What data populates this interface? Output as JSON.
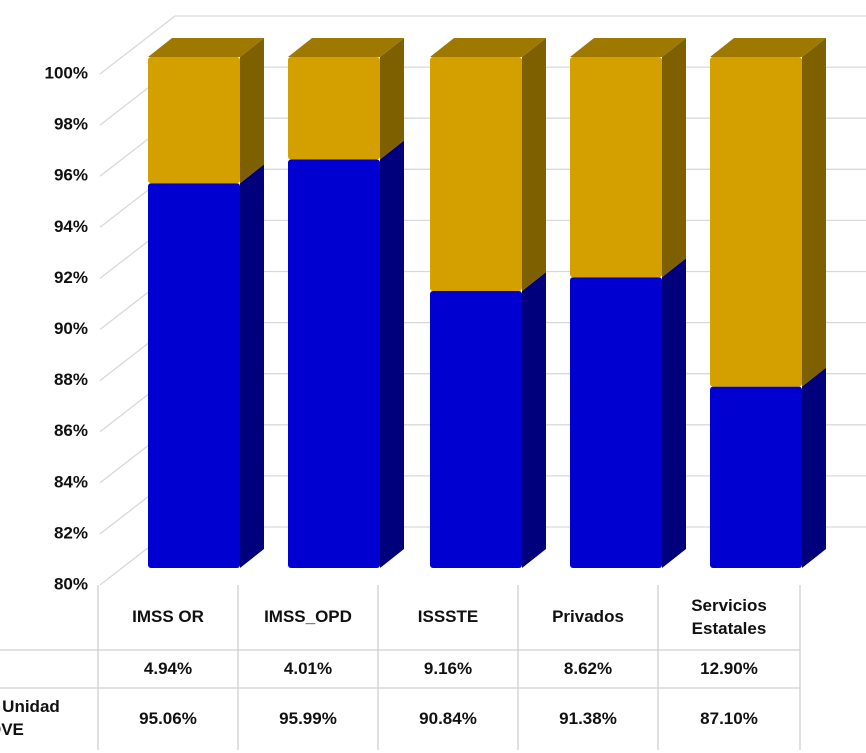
{
  "chart_data": {
    "type": "stacked-bar-3d",
    "categories": [
      "IMSS OR",
      "IMSS_OPD",
      "ISSSTE",
      "Privados",
      "Servicios Estatales"
    ],
    "series": [
      {
        "color": "#d4a000",
        "values": [
          4.94,
          4.01,
          9.16,
          8.62,
          12.9
        ],
        "value_labels": [
          "4.94%",
          "4.01%",
          "9.16%",
          "8.62%",
          "12.90%"
        ]
      },
      {
        "name": "a Unidad OVE",
        "color": "#0000d0",
        "values": [
          95.06,
          95.99,
          90.84,
          91.38,
          87.1
        ],
        "value_labels": [
          "95.06%",
          "95.99%",
          "90.84%",
          "91.38%",
          "87.10%"
        ]
      }
    ],
    "ylim": [
      80,
      100
    ],
    "yticks": [
      {
        "value": 80,
        "label": "80%"
      },
      {
        "value": 82,
        "label": "82%"
      },
      {
        "value": 84,
        "label": "84%"
      },
      {
        "value": 86,
        "label": "86%"
      },
      {
        "value": 88,
        "label": "88%"
      },
      {
        "value": 90,
        "label": "90%"
      },
      {
        "value": 92,
        "label": "92%"
      },
      {
        "value": 94,
        "label": "94%"
      },
      {
        "value": 96,
        "label": "96%"
      },
      {
        "value": 98,
        "label": "98%"
      },
      {
        "value": 100,
        "label": "100%"
      }
    ],
    "grid": true
  }
}
